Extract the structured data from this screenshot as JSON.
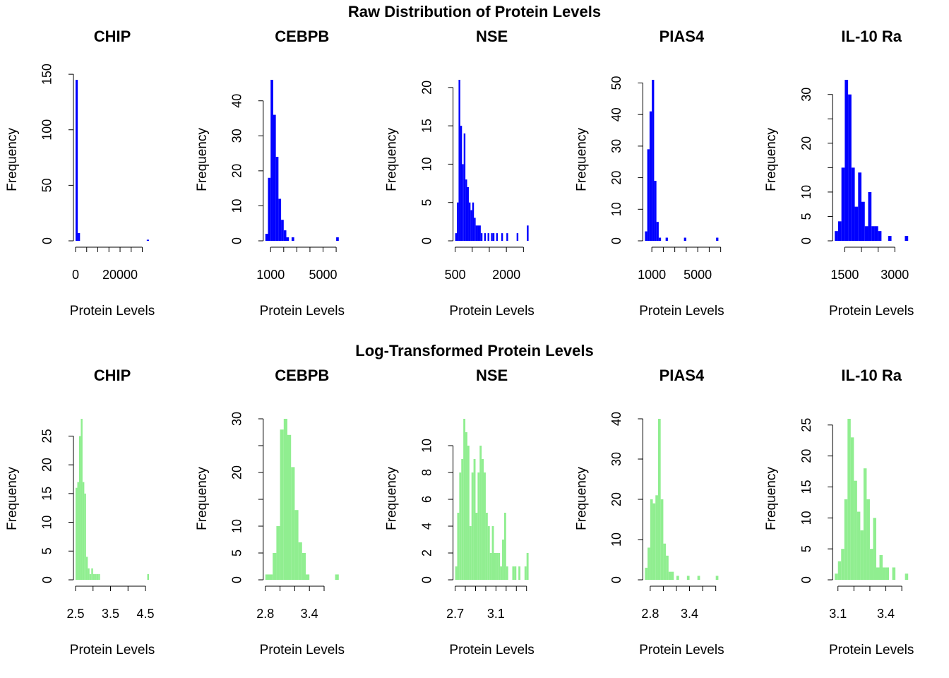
{
  "figure_titles": [
    "Raw Distribution of Protein Levels",
    "Log-Transformed Protein Levels"
  ],
  "chart_data": [
    {
      "type": "histogram",
      "title": "CHIP",
      "xlabel": "Protein Levels",
      "ylabel": "Frequency",
      "color": "#0000ff",
      "bins": [
        0,
        1000,
        2000,
        3000,
        4000,
        5000,
        6000,
        7000,
        8000,
        9000,
        10000,
        11000,
        12000,
        13000,
        14000,
        15000,
        16000,
        17000,
        18000,
        19000,
        20000,
        21000,
        22000,
        23000,
        24000,
        25000,
        26000,
        27000,
        28000,
        29000,
        30000,
        31000,
        32000,
        33000
      ],
      "values": [
        145,
        7,
        0,
        0,
        0,
        0,
        0,
        0,
        0,
        0,
        0,
        0,
        0,
        0,
        0,
        0,
        0,
        0,
        0,
        0,
        0,
        0,
        0,
        0,
        0,
        0,
        0,
        0,
        0,
        0,
        0,
        0,
        1
      ],
      "xlim": [
        0,
        33000
      ],
      "ylim": [
        0,
        145
      ],
      "xticks": [
        0,
        {
          "value": 5000,
          "label": null
        },
        {
          "value": 10000,
          "label": null
        },
        {
          "value": 15000,
          "label": null
        },
        20000,
        {
          "value": 25000,
          "label": null
        },
        {
          "value": 30000,
          "label": null
        }
      ],
      "yticks": [
        0,
        50,
        100,
        150
      ]
    },
    {
      "type": "histogram",
      "title": "CEBPB",
      "xlabel": "Protein Levels",
      "ylabel": "Frequency",
      "color": "#0000ff",
      "bins": [
        600,
        800,
        1000,
        1200,
        1400,
        1600,
        1800,
        2000,
        2200,
        2400,
        2600,
        2800,
        3000,
        3200,
        3400,
        3600,
        3800,
        4000,
        4200,
        4400,
        4600,
        4800,
        5000,
        5200,
        5400,
        5600,
        5800,
        6000,
        6200
      ],
      "values": [
        2,
        18,
        46,
        36,
        24,
        12,
        6,
        3,
        1,
        0,
        1,
        0,
        0,
        0,
        0,
        0,
        0,
        0,
        0,
        0,
        0,
        0,
        0,
        0,
        0,
        0,
        0,
        1
      ],
      "xlim": [
        600,
        6200
      ],
      "ylim": [
        0,
        46
      ],
      "xticks": [
        1000,
        {
          "value": 2000,
          "label": null
        },
        {
          "value": 3000,
          "label": null
        },
        {
          "value": 4000,
          "label": null
        },
        5000,
        {
          "value": 6000,
          "label": null
        }
      ],
      "yticks": [
        0,
        10,
        20,
        30,
        40
      ]
    },
    {
      "type": "histogram",
      "title": "NSE",
      "xlabel": "Protein Levels",
      "ylabel": "Frequency",
      "color": "#0000ff",
      "bins": [
        500,
        550,
        600,
        650,
        700,
        750,
        800,
        850,
        900,
        950,
        1000,
        1050,
        1100,
        1150,
        1200,
        1250,
        1300,
        1350,
        1400,
        1450,
        1500,
        1550,
        1600,
        1650,
        1700,
        1750,
        1800,
        1850,
        1900,
        1950,
        2000,
        2050,
        2100,
        2150,
        2200,
        2250,
        2300,
        2350,
        2400,
        2450,
        2500,
        2550,
        2600,
        2650
      ],
      "values": [
        1,
        5,
        21,
        15,
        10,
        14,
        8,
        7,
        5,
        4,
        5,
        3,
        2,
        2,
        2,
        1,
        0,
        1,
        0,
        1,
        0,
        1,
        1,
        0,
        1,
        0,
        0,
        1,
        0,
        0,
        1,
        0,
        0,
        0,
        0,
        0,
        1,
        0,
        0,
        0,
        0,
        0,
        2
      ],
      "xlim": [
        500,
        2650
      ],
      "ylim": [
        0,
        21
      ],
      "xticks": [
        500,
        {
          "value": 1000,
          "label": null
        },
        {
          "value": 1500,
          "label": null
        },
        2000,
        {
          "value": 2500,
          "label": null
        }
      ],
      "yticks": [
        0,
        5,
        10,
        15,
        20
      ]
    },
    {
      "type": "histogram",
      "title": "PIAS4",
      "xlabel": "Protein Levels",
      "ylabel": "Frequency",
      "color": "#0000ff",
      "bins": [
        400,
        600,
        800,
        1000,
        1200,
        1400,
        1600,
        1800,
        2000,
        2200,
        2400,
        2600,
        2800,
        3000,
        3200,
        3400,
        3600,
        3800,
        4000,
        4200,
        4400,
        4600,
        4800,
        5000,
        5200,
        5400,
        5600,
        5800,
        6000,
        6200,
        6400,
        6600,
        6800
      ],
      "values": [
        3,
        29,
        41,
        51,
        19,
        6,
        1,
        0,
        0,
        1,
        0,
        0,
        0,
        0,
        0,
        0,
        0,
        1,
        0,
        0,
        0,
        0,
        0,
        0,
        0,
        0,
        0,
        0,
        0,
        0,
        0,
        1
      ],
      "xlim": [
        400,
        6800
      ],
      "ylim": [
        0,
        51
      ],
      "xticks": [
        1000,
        {
          "value": 2000,
          "label": null
        },
        {
          "value": 3000,
          "label": null
        },
        {
          "value": 4000,
          "label": null
        },
        5000,
        {
          "value": 6000,
          "label": null
        },
        {
          "value": 7000,
          "label": null
        }
      ],
      "yticks": [
        0,
        10,
        20,
        30,
        40,
        50
      ]
    },
    {
      "type": "histogram",
      "title": "IL-10 Ra",
      "xlabel": "Protein Levels",
      "ylabel": "Frequency",
      "color": "#0000ff",
      "bins": [
        1200,
        1300,
        1400,
        1500,
        1600,
        1700,
        1800,
        1900,
        2000,
        2100,
        2200,
        2300,
        2400,
        2500,
        2600,
        2700,
        2800,
        2900,
        3000,
        3100,
        3200,
        3300,
        3400
      ],
      "values": [
        2,
        4,
        15,
        33,
        30,
        15,
        7,
        14,
        8,
        3,
        10,
        3,
        3,
        2,
        0,
        0,
        1,
        0,
        0,
        0,
        0,
        1
      ],
      "xlim": [
        1200,
        3400
      ],
      "ylim": [
        0,
        33
      ],
      "xticks": [
        1500,
        {
          "value": 2000,
          "label": null
        },
        {
          "value": 2500,
          "label": null
        },
        3000
      ],
      "yticks": [
        0,
        5,
        10,
        {
          "value": 15,
          "label": null
        },
        20,
        {
          "value": 25,
          "label": null
        },
        30
      ]
    },
    {
      "type": "histogram",
      "title": "CHIP",
      "xlabel": "Protein Levels",
      "ylabel": "Frequency",
      "color": "#90ee90",
      "bins": [
        2.5,
        2.55,
        2.6,
        2.65,
        2.7,
        2.75,
        2.8,
        2.85,
        2.9,
        2.95,
        3.0,
        3.05,
        3.1,
        3.15,
        3.2,
        3.25,
        3.3,
        3.35,
        3.4,
        3.45,
        3.5,
        3.55,
        3.6,
        3.65,
        3.7,
        3.75,
        3.8,
        3.85,
        3.9,
        3.95,
        4.0,
        4.05,
        4.1,
        4.15,
        4.2,
        4.25,
        4.3,
        4.35,
        4.4,
        4.45,
        4.5,
        4.55,
        4.6
      ],
      "values": [
        16,
        17,
        25,
        28,
        17,
        15,
        4,
        2,
        1,
        2,
        1,
        1,
        1,
        1,
        0,
        0,
        0,
        0,
        0,
        0,
        0,
        0,
        0,
        0,
        0,
        0,
        0,
        0,
        0,
        0,
        0,
        0,
        0,
        0,
        0,
        0,
        0,
        0,
        0,
        0,
        0,
        1
      ],
      "xlim": [
        2.5,
        4.6
      ],
      "ylim": [
        0,
        28
      ],
      "xticks": [
        2.5,
        {
          "value": 3.0,
          "label": null
        },
        3.5,
        {
          "value": 4.0,
          "label": null
        },
        4.5
      ],
      "yticks": [
        0,
        5,
        10,
        15,
        20,
        25
      ]
    },
    {
      "type": "histogram",
      "title": "CEBPB",
      "xlabel": "Protein Levels",
      "ylabel": "Frequency",
      "color": "#90ee90",
      "bins": [
        2.8,
        2.85,
        2.9,
        2.95,
        3.0,
        3.05,
        3.1,
        3.15,
        3.2,
        3.25,
        3.3,
        3.35,
        3.4,
        3.45,
        3.5,
        3.55,
        3.6,
        3.65,
        3.7,
        3.75,
        3.8
      ],
      "values": [
        1,
        1,
        5,
        10,
        28,
        30,
        27,
        21,
        13,
        7,
        5,
        1,
        0,
        0,
        0,
        0,
        0,
        0,
        0,
        1
      ],
      "xlim": [
        2.8,
        3.8
      ],
      "ylim": [
        0,
        30
      ],
      "xticks": [
        2.8,
        {
          "value": 3.0,
          "label": null
        },
        {
          "value": 3.2,
          "label": null
        },
        3.4,
        {
          "value": 3.6,
          "label": null
        }
      ],
      "yticks": [
        0,
        5,
        10,
        {
          "value": 15,
          "label": null
        },
        20,
        {
          "value": 25,
          "label": null
        },
        30
      ]
    },
    {
      "type": "histogram",
      "title": "NSE",
      "xlabel": "Protein Levels",
      "ylabel": "Frequency",
      "color": "#90ee90",
      "bins": [
        2.7,
        2.72,
        2.74,
        2.76,
        2.78,
        2.8,
        2.82,
        2.84,
        2.86,
        2.88,
        2.9,
        2.92,
        2.94,
        2.96,
        2.98,
        3.0,
        3.02,
        3.04,
        3.06,
        3.08,
        3.1,
        3.12,
        3.14,
        3.16,
        3.18,
        3.2,
        3.22,
        3.24,
        3.26,
        3.28,
        3.3,
        3.32,
        3.34,
        3.36,
        3.38,
        3.4,
        3.42
      ],
      "values": [
        1,
        5,
        8,
        9,
        12,
        11,
        10,
        4,
        8,
        9,
        5,
        8,
        10,
        9,
        8,
        5,
        4,
        2,
        4,
        2,
        2,
        2,
        1,
        3,
        5,
        1,
        0,
        0,
        1,
        1,
        0,
        1,
        0,
        0,
        1,
        2
      ],
      "xlim": [
        2.7,
        3.42
      ],
      "ylim": [
        0,
        12
      ],
      "xticks": [
        2.7,
        {
          "value": 2.8,
          "label": null
        },
        {
          "value": 2.9,
          "label": null
        },
        {
          "value": 3.0,
          "label": null
        },
        3.1,
        {
          "value": 3.2,
          "label": null
        },
        {
          "value": 3.3,
          "label": null
        },
        {
          "value": 3.4,
          "label": null
        }
      ],
      "yticks": [
        0,
        2,
        4,
        6,
        8,
        10
      ]
    },
    {
      "type": "histogram",
      "title": "PIAS4",
      "xlabel": "Protein Levels",
      "ylabel": "Frequency",
      "color": "#90ee90",
      "bins": [
        2.72,
        2.76,
        2.8,
        2.84,
        2.88,
        2.92,
        2.96,
        3.0,
        3.04,
        3.08,
        3.12,
        3.16,
        3.2,
        3.24,
        3.28,
        3.32,
        3.36,
        3.4,
        3.44,
        3.48,
        3.52,
        3.56,
        3.6,
        3.64,
        3.68,
        3.72,
        3.76,
        3.8,
        3.84
      ],
      "values": [
        3,
        8,
        20,
        19,
        21,
        40,
        20,
        9,
        6,
        2,
        2,
        0,
        1,
        0,
        0,
        0,
        1,
        0,
        0,
        0,
        1,
        0,
        0,
        0,
        0,
        0,
        0,
        1
      ],
      "xlim": [
        2.72,
        3.84
      ],
      "ylim": [
        0,
        40
      ],
      "xticks": [
        2.8,
        {
          "value": 3.0,
          "label": null
        },
        {
          "value": 3.2,
          "label": null
        },
        3.4,
        {
          "value": 3.6,
          "label": null
        },
        {
          "value": 3.8,
          "label": null
        }
      ],
      "yticks": [
        0,
        10,
        20,
        30,
        40
      ]
    },
    {
      "type": "histogram",
      "title": "IL-10 Ra",
      "xlabel": "Protein Levels",
      "ylabel": "Frequency",
      "color": "#90ee90",
      "bins": [
        3.08,
        3.1,
        3.12,
        3.14,
        3.16,
        3.18,
        3.2,
        3.22,
        3.24,
        3.26,
        3.28,
        3.3,
        3.32,
        3.34,
        3.36,
        3.38,
        3.4,
        3.42,
        3.44,
        3.46,
        3.48,
        3.5,
        3.52,
        3.54
      ],
      "values": [
        1,
        3,
        5,
        13,
        26,
        23,
        16,
        11,
        8,
        18,
        13,
        5,
        10,
        2,
        4,
        2,
        2,
        0,
        2,
        0,
        0,
        0,
        1
      ],
      "xlim": [
        3.08,
        3.54
      ],
      "ylim": [
        0,
        26
      ],
      "xticks": [
        3.1,
        {
          "value": 3.2,
          "label": null
        },
        {
          "value": 3.3,
          "label": null
        },
        3.4,
        {
          "value": 3.5,
          "label": null
        }
      ],
      "yticks": [
        0,
        5,
        10,
        15,
        20,
        25
      ]
    }
  ]
}
